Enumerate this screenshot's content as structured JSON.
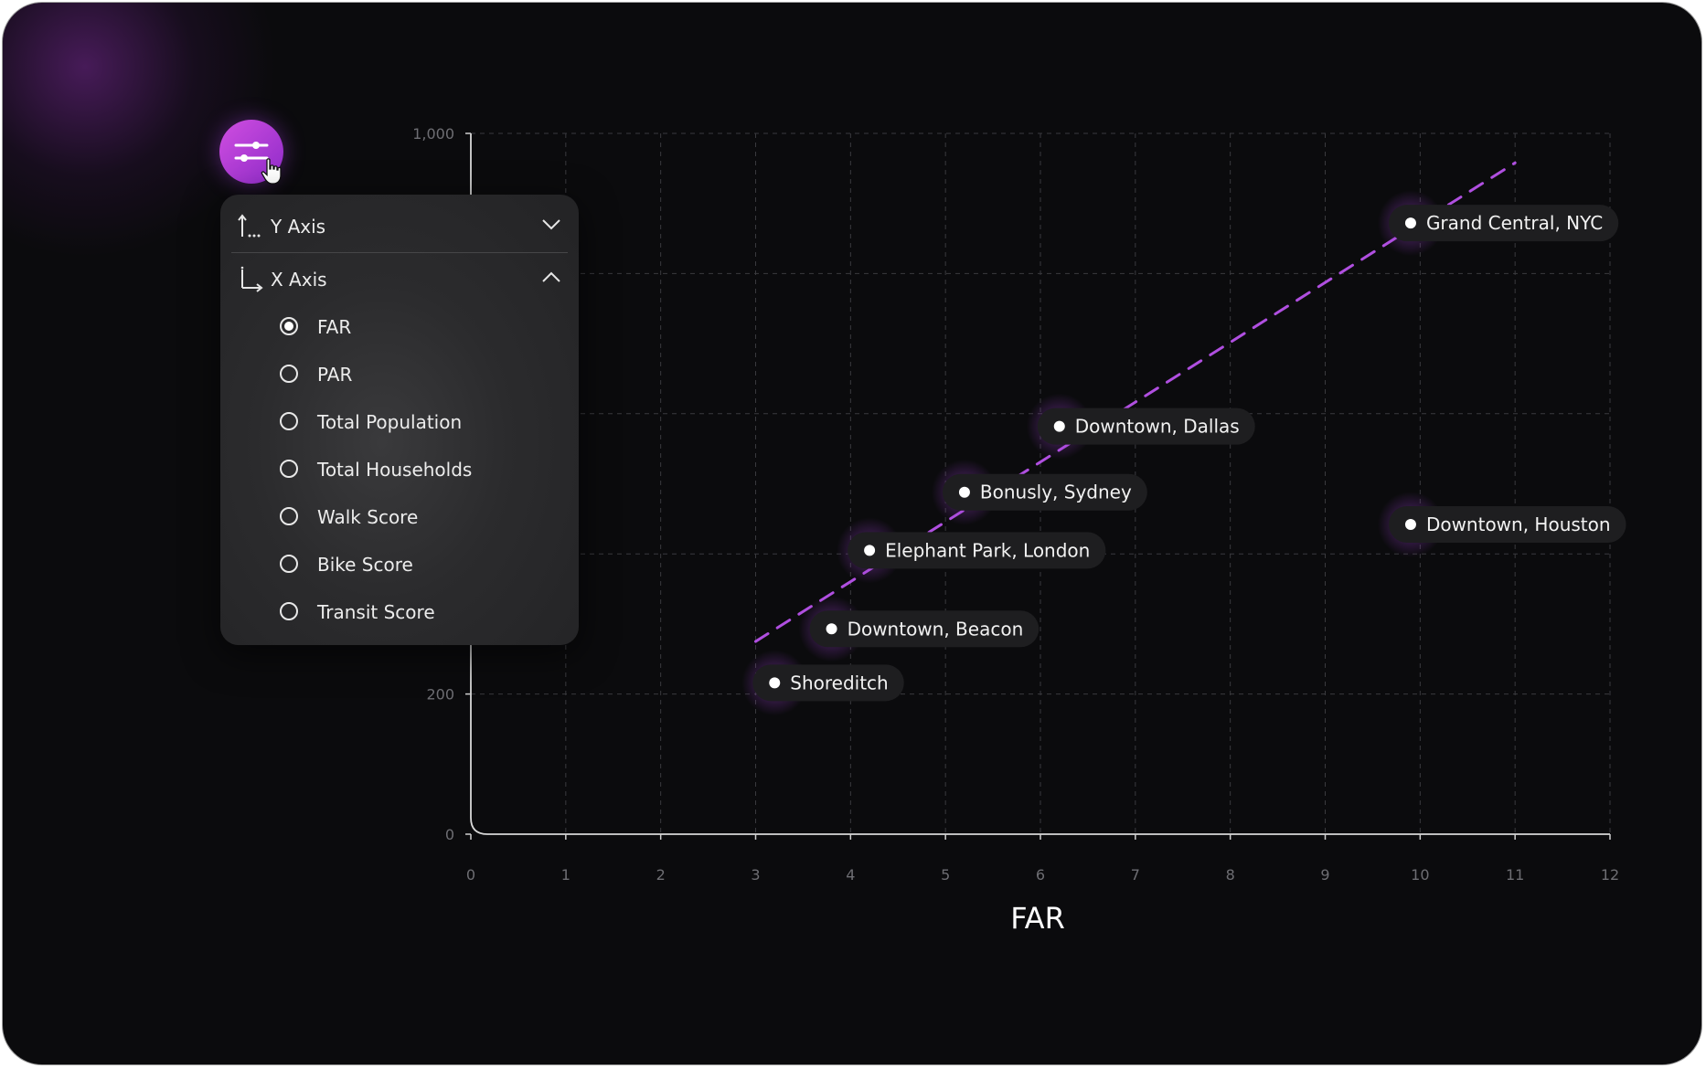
{
  "controls": {
    "filter_button_icon": "sliders-icon",
    "y_axis": {
      "label": "Y Axis",
      "expanded": false
    },
    "x_axis": {
      "label": "X Axis",
      "expanded": true,
      "selected": "FAR",
      "options": [
        "FAR",
        "PAR",
        "Total Population",
        "Total Households",
        "Walk Score",
        "Bike Score",
        "Transit Score"
      ]
    }
  },
  "chart_data": {
    "type": "scatter",
    "xlabel": "FAR",
    "ylabel": "",
    "xlim": [
      0,
      12
    ],
    "ylim": [
      0,
      1000
    ],
    "x_ticks": [
      "0",
      "1",
      "2",
      "3",
      "4",
      "5",
      "6",
      "7",
      "8",
      "9",
      "10",
      "11",
      "12"
    ],
    "y_ticks": [
      {
        "value": 0,
        "label": "0"
      },
      {
        "value": 200,
        "label": "200"
      },
      {
        "value": 1000,
        "label": "1,000"
      }
    ],
    "grid": true,
    "points": [
      {
        "label": "Grand Central, NYC",
        "x": 9.9,
        "y": 872
      },
      {
        "label": "Downtown, Dallas",
        "x": 6.2,
        "y": 582
      },
      {
        "label": "Bonusly, Sydney",
        "x": 5.2,
        "y": 488
      },
      {
        "label": "Downtown, Houston",
        "x": 9.9,
        "y": 442
      },
      {
        "label": "Elephant Park, London",
        "x": 4.2,
        "y": 405
      },
      {
        "label": "Downtown, Beacon",
        "x": 3.8,
        "y": 293
      },
      {
        "label": "Shoreditch",
        "x": 3.2,
        "y": 216
      }
    ],
    "trendline": {
      "style": "dashed",
      "color": "#b04fe0",
      "from": {
        "x": 3.0,
        "y": 275
      },
      "to": {
        "x": 11.0,
        "y": 958
      }
    },
    "colors": {
      "background": "#0b0b0d",
      "accent": "#b04fe0",
      "point": "#ffffff",
      "label_bg": "#1e1e20"
    }
  }
}
